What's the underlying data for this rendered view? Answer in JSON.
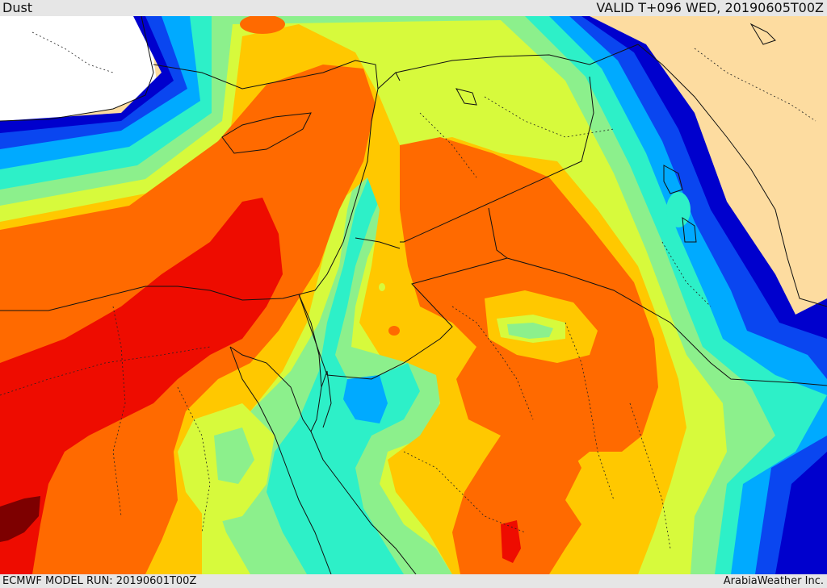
{
  "header": {
    "title": "Dust",
    "valid": "VALID T+096 WED, 20190605T00Z"
  },
  "footer": {
    "model_run": "ECMWF MODEL RUN: 20190601T00Z",
    "credit": "ArabiaWeather Inc."
  },
  "colors": {
    "land": "#fddca0",
    "sea": "#ffffff",
    "level_1": "#0000cd",
    "level_2": "#0a46f0",
    "level_3": "#00aaff",
    "level_4": "#2df0c8",
    "level_5": "#8cf08c",
    "level_6": "#d7fa3c",
    "level_7": "#ffc800",
    "level_8": "#ff6a00",
    "level_9": "#ee0c00",
    "level_10": "#7d0000"
  }
}
